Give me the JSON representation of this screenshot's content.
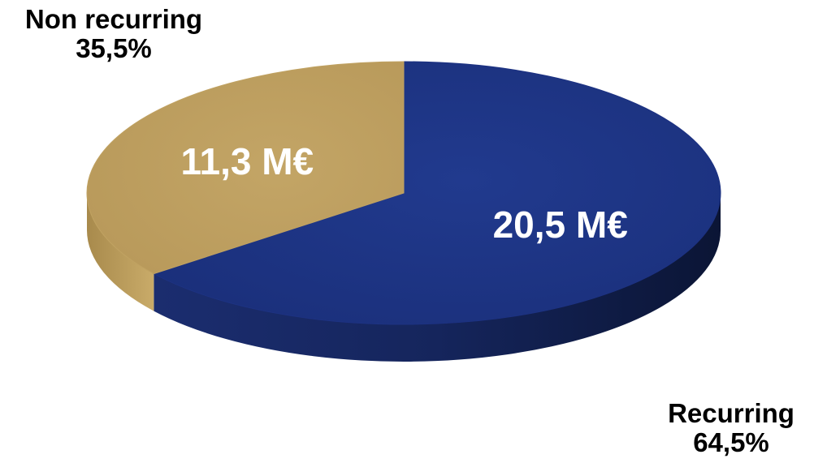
{
  "chart_data": {
    "type": "pie",
    "style": "3d",
    "title": "",
    "unit": "M€",
    "slices": [
      {
        "name": "Recurring",
        "value": 20.5,
        "value_label": "20,5 M€",
        "percent_label": "64,5%",
        "color": "#1d3282"
      },
      {
        "name": "Non recurring",
        "value": 11.3,
        "value_label": "11,3 M€",
        "percent_label": "35,5%",
        "color": "#c0a262"
      }
    ],
    "legend": "none"
  }
}
